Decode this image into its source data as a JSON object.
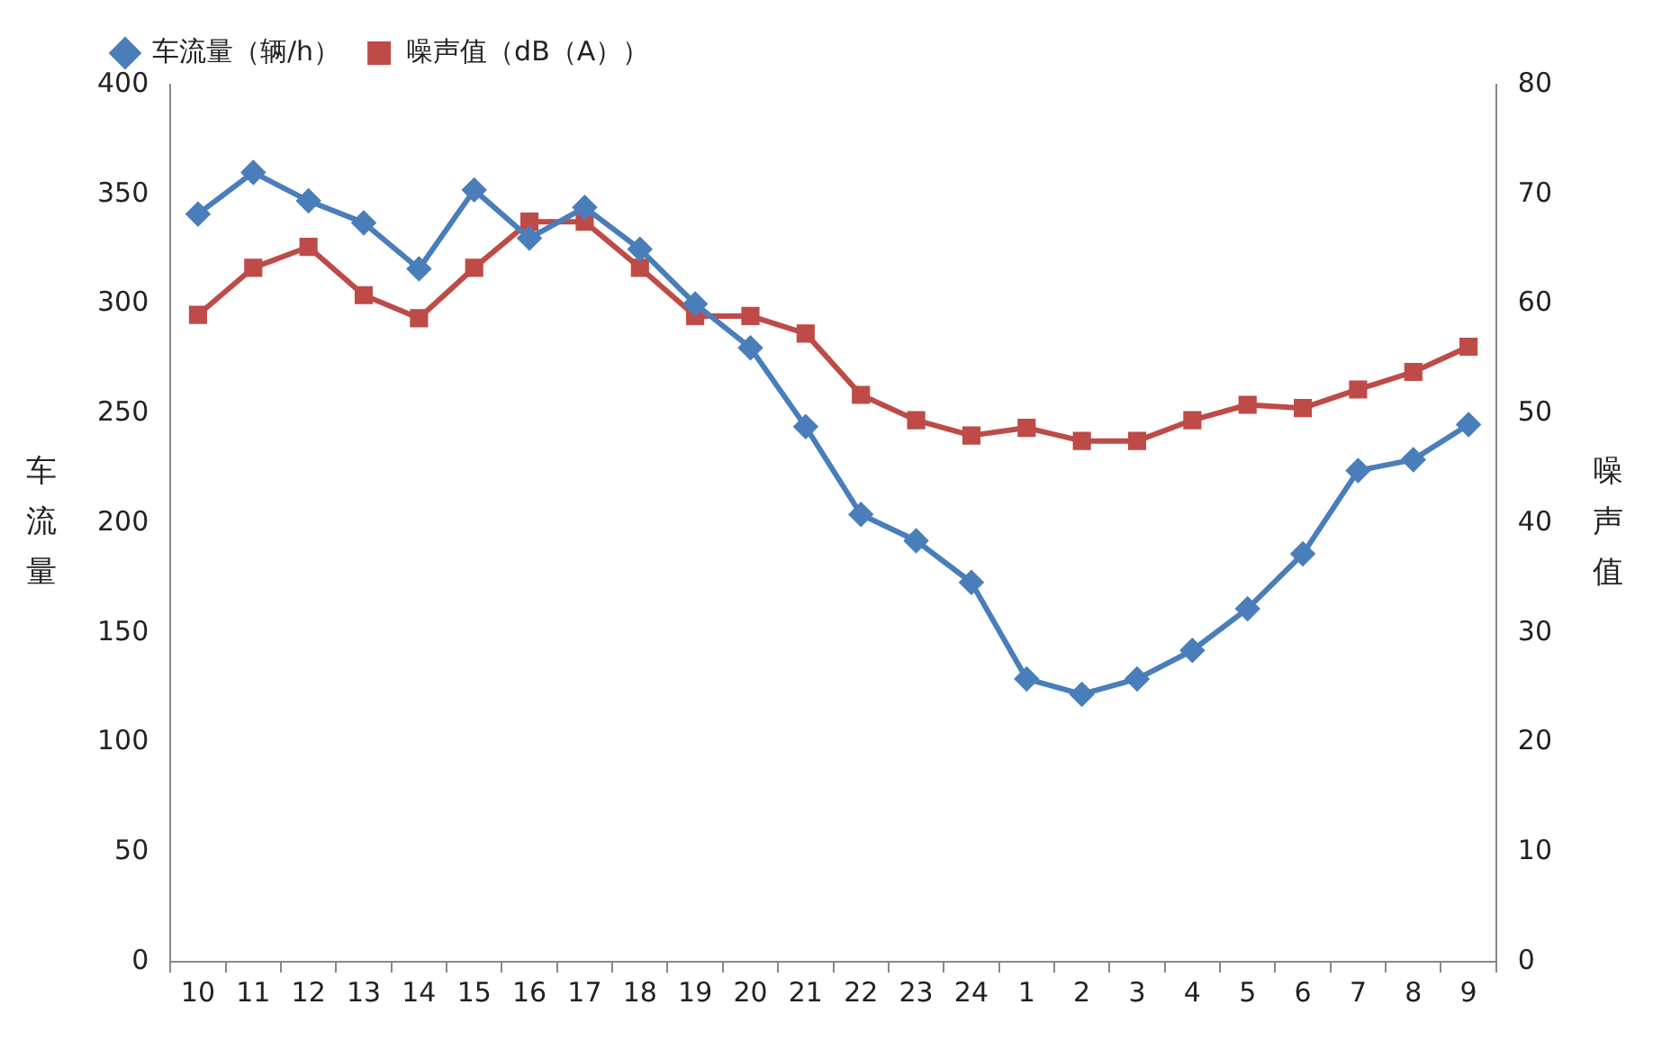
{
  "chart_data": {
    "type": "line",
    "ylabel": "车流量",
    "y2label": "噪声值",
    "categories": [
      "10",
      "11",
      "12",
      "13",
      "14",
      "15",
      "16",
      "17",
      "18",
      "19",
      "20",
      "21",
      "22",
      "23",
      "24",
      "1",
      "2",
      "3",
      "4",
      "5",
      "6",
      "7",
      "8",
      "9"
    ],
    "series": [
      {
        "name": "车流量（辆/h）",
        "color": "#4a7ebb",
        "marker": "diamond",
        "values": [
          341,
          360,
          347,
          337,
          316,
          352,
          330,
          344,
          325,
          300,
          280,
          244,
          204,
          192,
          173,
          129,
          122,
          129,
          142,
          161,
          186,
          224,
          229,
          245
        ]
      },
      {
        "name": "噪声值（dB（A））",
        "color": "#be4b48",
        "marker": "square",
        "axis": "y2",
        "values": [
          59,
          63.3,
          65.2,
          60.8,
          58.7,
          63.3,
          67.5,
          67.5,
          63.3,
          58.9,
          58.9,
          57.3,
          51.7,
          49.4,
          48,
          48.7,
          47.5,
          47.5,
          49.4,
          50.8,
          50.5,
          52.2,
          53.8,
          56.1
        ]
      }
    ],
    "ylim": [
      0,
      400
    ],
    "yticks": [
      0,
      50,
      100,
      150,
      200,
      250,
      300,
      350,
      400
    ],
    "y2lim": [
      0,
      80
    ],
    "y2ticks": [
      0,
      10,
      20,
      30,
      40,
      50,
      60,
      70,
      80
    ],
    "grid": false,
    "legend": "top left",
    "line_style": "solid"
  }
}
